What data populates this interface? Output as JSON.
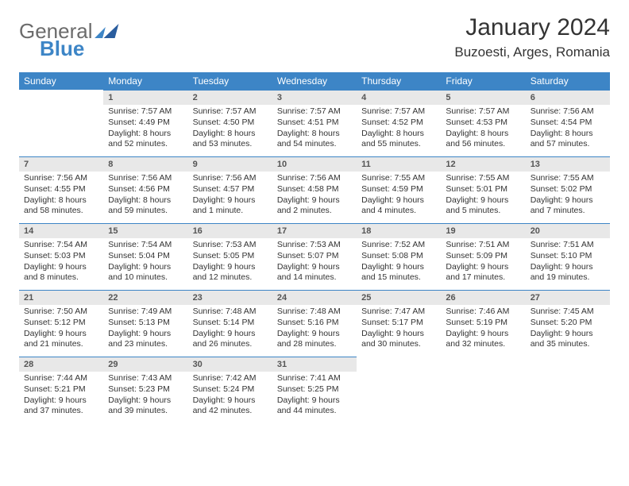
{
  "logo": {
    "part1": "General",
    "part2": "Blue"
  },
  "title": "January 2024",
  "location": "Buzoesti, Arges, Romania",
  "colors": {
    "header_bg": "#3d85c6",
    "header_fg": "#ffffff",
    "daynum_bg": "#e8e8e8",
    "rule": "#3d85c6"
  },
  "weekdays": [
    "Sunday",
    "Monday",
    "Tuesday",
    "Wednesday",
    "Thursday",
    "Friday",
    "Saturday"
  ],
  "weeks": [
    [
      null,
      {
        "n": "1",
        "sr": "7:57 AM",
        "ss": "4:49 PM",
        "dl": "8 hours and 52 minutes."
      },
      {
        "n": "2",
        "sr": "7:57 AM",
        "ss": "4:50 PM",
        "dl": "8 hours and 53 minutes."
      },
      {
        "n": "3",
        "sr": "7:57 AM",
        "ss": "4:51 PM",
        "dl": "8 hours and 54 minutes."
      },
      {
        "n": "4",
        "sr": "7:57 AM",
        "ss": "4:52 PM",
        "dl": "8 hours and 55 minutes."
      },
      {
        "n": "5",
        "sr": "7:57 AM",
        "ss": "4:53 PM",
        "dl": "8 hours and 56 minutes."
      },
      {
        "n": "6",
        "sr": "7:56 AM",
        "ss": "4:54 PM",
        "dl": "8 hours and 57 minutes."
      }
    ],
    [
      {
        "n": "7",
        "sr": "7:56 AM",
        "ss": "4:55 PM",
        "dl": "8 hours and 58 minutes."
      },
      {
        "n": "8",
        "sr": "7:56 AM",
        "ss": "4:56 PM",
        "dl": "8 hours and 59 minutes."
      },
      {
        "n": "9",
        "sr": "7:56 AM",
        "ss": "4:57 PM",
        "dl": "9 hours and 1 minute."
      },
      {
        "n": "10",
        "sr": "7:56 AM",
        "ss": "4:58 PM",
        "dl": "9 hours and 2 minutes."
      },
      {
        "n": "11",
        "sr": "7:55 AM",
        "ss": "4:59 PM",
        "dl": "9 hours and 4 minutes."
      },
      {
        "n": "12",
        "sr": "7:55 AM",
        "ss": "5:01 PM",
        "dl": "9 hours and 5 minutes."
      },
      {
        "n": "13",
        "sr": "7:55 AM",
        "ss": "5:02 PM",
        "dl": "9 hours and 7 minutes."
      }
    ],
    [
      {
        "n": "14",
        "sr": "7:54 AM",
        "ss": "5:03 PM",
        "dl": "9 hours and 8 minutes."
      },
      {
        "n": "15",
        "sr": "7:54 AM",
        "ss": "5:04 PM",
        "dl": "9 hours and 10 minutes."
      },
      {
        "n": "16",
        "sr": "7:53 AM",
        "ss": "5:05 PM",
        "dl": "9 hours and 12 minutes."
      },
      {
        "n": "17",
        "sr": "7:53 AM",
        "ss": "5:07 PM",
        "dl": "9 hours and 14 minutes."
      },
      {
        "n": "18",
        "sr": "7:52 AM",
        "ss": "5:08 PM",
        "dl": "9 hours and 15 minutes."
      },
      {
        "n": "19",
        "sr": "7:51 AM",
        "ss": "5:09 PM",
        "dl": "9 hours and 17 minutes."
      },
      {
        "n": "20",
        "sr": "7:51 AM",
        "ss": "5:10 PM",
        "dl": "9 hours and 19 minutes."
      }
    ],
    [
      {
        "n": "21",
        "sr": "7:50 AM",
        "ss": "5:12 PM",
        "dl": "9 hours and 21 minutes."
      },
      {
        "n": "22",
        "sr": "7:49 AM",
        "ss": "5:13 PM",
        "dl": "9 hours and 23 minutes."
      },
      {
        "n": "23",
        "sr": "7:48 AM",
        "ss": "5:14 PM",
        "dl": "9 hours and 26 minutes."
      },
      {
        "n": "24",
        "sr": "7:48 AM",
        "ss": "5:16 PM",
        "dl": "9 hours and 28 minutes."
      },
      {
        "n": "25",
        "sr": "7:47 AM",
        "ss": "5:17 PM",
        "dl": "9 hours and 30 minutes."
      },
      {
        "n": "26",
        "sr": "7:46 AM",
        "ss": "5:19 PM",
        "dl": "9 hours and 32 minutes."
      },
      {
        "n": "27",
        "sr": "7:45 AM",
        "ss": "5:20 PM",
        "dl": "9 hours and 35 minutes."
      }
    ],
    [
      {
        "n": "28",
        "sr": "7:44 AM",
        "ss": "5:21 PM",
        "dl": "9 hours and 37 minutes."
      },
      {
        "n": "29",
        "sr": "7:43 AM",
        "ss": "5:23 PM",
        "dl": "9 hours and 39 minutes."
      },
      {
        "n": "30",
        "sr": "7:42 AM",
        "ss": "5:24 PM",
        "dl": "9 hours and 42 minutes."
      },
      {
        "n": "31",
        "sr": "7:41 AM",
        "ss": "5:25 PM",
        "dl": "9 hours and 44 minutes."
      },
      null,
      null,
      null
    ]
  ],
  "labels": {
    "sunrise": "Sunrise:",
    "sunset": "Sunset:",
    "daylight": "Daylight:"
  }
}
